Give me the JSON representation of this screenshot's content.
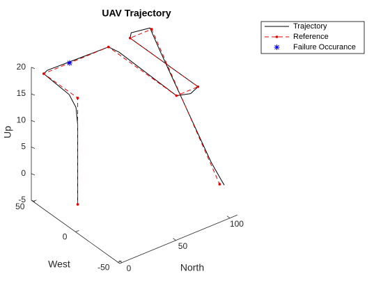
{
  "chart_data": {
    "type": "line3d",
    "title": "UAV Trajectory",
    "xlabel": "North",
    "ylabel": "West",
    "zlabel": "Up",
    "xlim": [
      -2,
      107
    ],
    "ylim": [
      -52,
      52
    ],
    "zlim": [
      -5,
      20
    ],
    "xticks": [
      0,
      50,
      100
    ],
    "yticks": [
      -50,
      0,
      50
    ],
    "zticks": [
      -5,
      0,
      5,
      10,
      15,
      20
    ],
    "legend": "top-right",
    "series": [
      {
        "name": "Trajectory",
        "color": "#000000",
        "dash": false,
        "marker": "none",
        "x": [
          0,
          0,
          0,
          0,
          0,
          5,
          30,
          60,
          62,
          60,
          70,
          80,
          80,
          80,
          85,
          100,
          100,
          100,
          100,
          100,
          102
        ],
        "y": [
          0,
          0,
          2,
          10,
          40,
          42,
          41,
          40,
          30,
          -40,
          -44,
          -40,
          0,
          40,
          45,
          42,
          30,
          0,
          -30,
          -42,
          -43
        ],
        "z": [
          0,
          15,
          18,
          19.5,
          20,
          20,
          20,
          20,
          20,
          20,
          20,
          20,
          20,
          20,
          20,
          20,
          17,
          10,
          3,
          1,
          0
        ]
      },
      {
        "name": "Reference",
        "color": "#e00000",
        "dash": true,
        "marker": "dot",
        "x": [
          0,
          0,
          0,
          60,
          60,
          80,
          80,
          100,
          100
        ],
        "y": [
          0,
          0,
          40,
          40,
          -40,
          -40,
          40,
          40,
          -40
        ],
        "z": [
          0,
          20,
          20,
          20,
          20,
          20,
          20,
          20,
          0
        ]
      },
      {
        "name": "Failure Occurance",
        "color": "#0000ff",
        "dash": false,
        "marker": "star",
        "x": [
          24
        ],
        "y": [
          40
        ],
        "z": [
          20
        ]
      }
    ]
  }
}
